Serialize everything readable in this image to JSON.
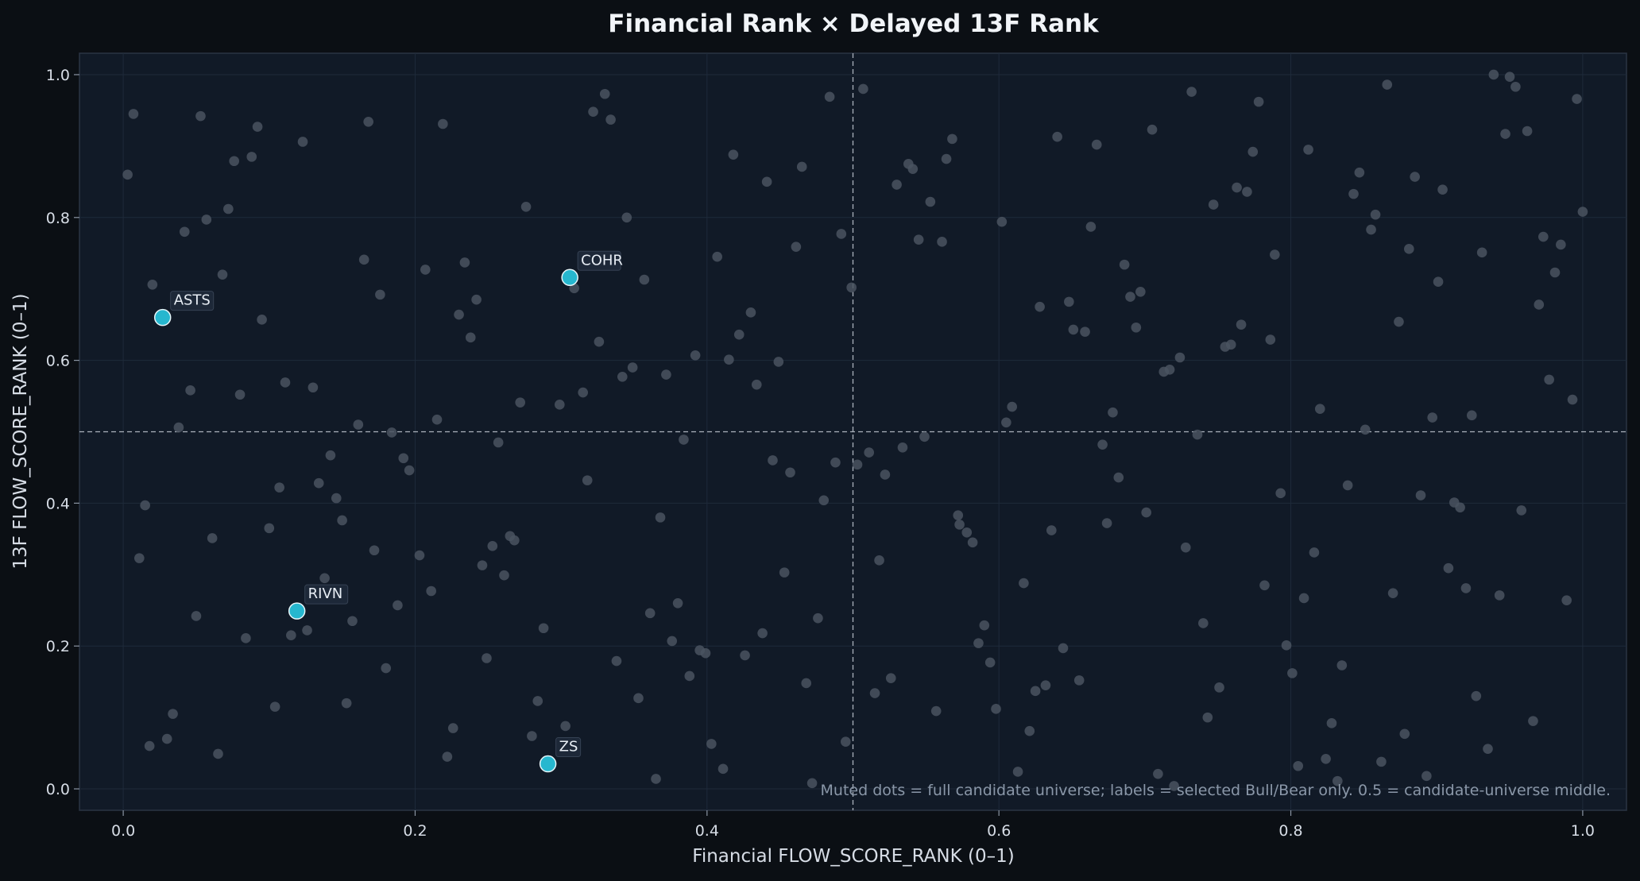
{
  "chart_data": {
    "type": "scatter",
    "title": "Financial Rank × Delayed 13F Rank",
    "xlabel": "Financial FLOW_SCORE_RANK (0–1)",
    "ylabel": "13F FLOW_SCORE_RANK (0–1)",
    "xlim": [
      -0.03,
      1.03
    ],
    "ylim": [
      -0.03,
      1.03
    ],
    "xticks": [
      "0.0",
      "0.2",
      "0.4",
      "0.6",
      "0.8",
      "1.0"
    ],
    "yticks": [
      "0.0",
      "0.2",
      "0.4",
      "0.6",
      "0.8",
      "1.0"
    ],
    "reference_lines": {
      "x": 0.5,
      "y": 0.5
    },
    "grid": true,
    "annotation": "Muted dots = full candidate universe; labels = selected Bull/Bear only. 0.5 = candidate-universe middle.",
    "colors": {
      "background": "#0b0f14",
      "plot": "#111a27",
      "muted": "#4a5360",
      "highlight": "#26b7cf"
    },
    "universe": [
      [
        0.003,
        0.86
      ],
      [
        0.007,
        0.945
      ],
      [
        0.02,
        0.706
      ],
      [
        0.011,
        0.323
      ],
      [
        0.015,
        0.397
      ],
      [
        0.018,
        0.06
      ],
      [
        0.03,
        0.07
      ],
      [
        0.034,
        0.105
      ],
      [
        0.038,
        0.506
      ],
      [
        0.042,
        0.78
      ],
      [
        0.046,
        0.558
      ],
      [
        0.05,
        0.242
      ],
      [
        0.053,
        0.942
      ],
      [
        0.057,
        0.797
      ],
      [
        0.061,
        0.351
      ],
      [
        0.065,
        0.049
      ],
      [
        0.068,
        0.72
      ],
      [
        0.072,
        0.812
      ],
      [
        0.076,
        0.879
      ],
      [
        0.08,
        0.552
      ],
      [
        0.084,
        0.211
      ],
      [
        0.088,
        0.885
      ],
      [
        0.092,
        0.927
      ],
      [
        0.095,
        0.657
      ],
      [
        0.1,
        0.365
      ],
      [
        0.104,
        0.115
      ],
      [
        0.107,
        0.422
      ],
      [
        0.111,
        0.569
      ],
      [
        0.115,
        0.215
      ],
      [
        0.123,
        0.906
      ],
      [
        0.126,
        0.222
      ],
      [
        0.13,
        0.562
      ],
      [
        0.134,
        0.428
      ],
      [
        0.138,
        0.295
      ],
      [
        0.142,
        0.467
      ],
      [
        0.146,
        0.407
      ],
      [
        0.15,
        0.376
      ],
      [
        0.153,
        0.12
      ],
      [
        0.157,
        0.235
      ],
      [
        0.161,
        0.51
      ],
      [
        0.165,
        0.741
      ],
      [
        0.168,
        0.934
      ],
      [
        0.172,
        0.334
      ],
      [
        0.176,
        0.692
      ],
      [
        0.18,
        0.169
      ],
      [
        0.184,
        0.499
      ],
      [
        0.188,
        0.257
      ],
      [
        0.192,
        0.463
      ],
      [
        0.196,
        0.446
      ],
      [
        0.203,
        0.327
      ],
      [
        0.207,
        0.727
      ],
      [
        0.211,
        0.277
      ],
      [
        0.215,
        0.517
      ],
      [
        0.219,
        0.931
      ],
      [
        0.222,
        0.045
      ],
      [
        0.226,
        0.085
      ],
      [
        0.23,
        0.664
      ],
      [
        0.234,
        0.737
      ],
      [
        0.238,
        0.632
      ],
      [
        0.242,
        0.685
      ],
      [
        0.246,
        0.313
      ],
      [
        0.249,
        0.183
      ],
      [
        0.253,
        0.34
      ],
      [
        0.257,
        0.485
      ],
      [
        0.261,
        0.299
      ],
      [
        0.265,
        0.354
      ],
      [
        0.268,
        0.348
      ],
      [
        0.272,
        0.541
      ],
      [
        0.276,
        0.815
      ],
      [
        0.28,
        0.074
      ],
      [
        0.284,
        0.123
      ],
      [
        0.288,
        0.225
      ],
      [
        0.299,
        0.538
      ],
      [
        0.303,
        0.088
      ],
      [
        0.315,
        0.555
      ],
      [
        0.318,
        0.432
      ],
      [
        0.322,
        0.948
      ],
      [
        0.326,
        0.626
      ],
      [
        0.33,
        0.973
      ],
      [
        0.334,
        0.937
      ],
      [
        0.338,
        0.179
      ],
      [
        0.342,
        0.577
      ],
      [
        0.345,
        0.8
      ],
      [
        0.349,
        0.59
      ],
      [
        0.353,
        0.127
      ],
      [
        0.357,
        0.713
      ],
      [
        0.361,
        0.246
      ],
      [
        0.365,
        0.014
      ],
      [
        0.368,
        0.38
      ],
      [
        0.372,
        0.58
      ],
      [
        0.376,
        0.207
      ],
      [
        0.38,
        0.26
      ],
      [
        0.384,
        0.489
      ],
      [
        0.388,
        0.158
      ],
      [
        0.392,
        0.607
      ],
      [
        0.395,
        0.194
      ],
      [
        0.399,
        0.19
      ],
      [
        0.403,
        0.063
      ],
      [
        0.407,
        0.745
      ],
      [
        0.411,
        0.028
      ],
      [
        0.415,
        0.601
      ],
      [
        0.418,
        0.888
      ],
      [
        0.422,
        0.636
      ],
      [
        0.426,
        0.187
      ],
      [
        0.43,
        0.667
      ],
      [
        0.434,
        0.566
      ],
      [
        0.438,
        0.218
      ],
      [
        0.441,
        0.85
      ],
      [
        0.445,
        0.46
      ],
      [
        0.449,
        0.598
      ],
      [
        0.453,
        0.303
      ],
      [
        0.457,
        0.443
      ],
      [
        0.461,
        0.759
      ],
      [
        0.465,
        0.871
      ],
      [
        0.468,
        0.148
      ],
      [
        0.472,
        0.008
      ],
      [
        0.476,
        0.239
      ],
      [
        0.48,
        0.404
      ],
      [
        0.484,
        0.969
      ],
      [
        0.488,
        0.457
      ],
      [
        0.492,
        0.777
      ],
      [
        0.495,
        0.066
      ],
      [
        0.499,
        0.702
      ],
      [
        0.503,
        0.454
      ],
      [
        0.507,
        0.98
      ],
      [
        0.511,
        0.471
      ],
      [
        0.515,
        0.134
      ],
      [
        0.518,
        0.32
      ],
      [
        0.522,
        0.44
      ],
      [
        0.526,
        0.155
      ],
      [
        0.53,
        0.846
      ],
      [
        0.534,
        0.478
      ],
      [
        0.538,
        0.875
      ],
      [
        0.541,
        0.868
      ],
      [
        0.545,
        0.769
      ],
      [
        0.549,
        0.493
      ],
      [
        0.553,
        0.822
      ],
      [
        0.557,
        0.109
      ],
      [
        0.561,
        0.766
      ],
      [
        0.564,
        0.882
      ],
      [
        0.568,
        0.91
      ],
      [
        0.572,
        0.383
      ],
      [
        0.573,
        0.37
      ],
      [
        0.578,
        0.359
      ],
      [
        0.582,
        0.345
      ],
      [
        0.586,
        0.204
      ],
      [
        0.59,
        0.229
      ],
      [
        0.594,
        0.177
      ],
      [
        0.598,
        0.112
      ],
      [
        0.602,
        0.794
      ],
      [
        0.605,
        0.513
      ],
      [
        0.609,
        0.535
      ],
      [
        0.613,
        0.024
      ],
      [
        0.617,
        0.288
      ],
      [
        0.621,
        0.081
      ],
      [
        0.625,
        0.137
      ],
      [
        0.628,
        0.675
      ],
      [
        0.632,
        0.145
      ],
      [
        0.636,
        0.362
      ],
      [
        0.64,
        0.913
      ],
      [
        0.644,
        0.197
      ],
      [
        0.648,
        0.682
      ],
      [
        0.651,
        0.643
      ],
      [
        0.655,
        0.152
      ],
      [
        0.659,
        0.64
      ],
      [
        0.663,
        0.787
      ],
      [
        0.667,
        0.902
      ],
      [
        0.671,
        0.482
      ],
      [
        0.674,
        0.372
      ],
      [
        0.678,
        0.527
      ],
      [
        0.682,
        0.436
      ],
      [
        0.686,
        0.734
      ],
      [
        0.69,
        0.689
      ],
      [
        0.694,
        0.646
      ],
      [
        0.697,
        0.696
      ],
      [
        0.701,
        0.387
      ],
      [
        0.705,
        0.923
      ],
      [
        0.709,
        0.021
      ],
      [
        0.713,
        0.584
      ],
      [
        0.717,
        0.587
      ],
      [
        0.72,
        0.004
      ],
      [
        0.724,
        0.604
      ],
      [
        0.728,
        0.338
      ],
      [
        0.732,
        0.976
      ],
      [
        0.736,
        0.496
      ],
      [
        0.74,
        0.232
      ],
      [
        0.743,
        0.1
      ],
      [
        0.747,
        0.818
      ],
      [
        0.751,
        0.142
      ],
      [
        0.755,
        0.619
      ],
      [
        0.759,
        0.622
      ],
      [
        0.763,
        0.842
      ],
      [
        0.766,
        0.65
      ],
      [
        0.77,
        0.836
      ],
      [
        0.774,
        0.892
      ],
      [
        0.778,
        0.962
      ],
      [
        0.782,
        0.285
      ],
      [
        0.786,
        0.629
      ],
      [
        0.789,
        0.748
      ],
      [
        0.793,
        0.414
      ],
      [
        0.797,
        0.201
      ],
      [
        0.801,
        0.162
      ],
      [
        0.805,
        0.032
      ],
      [
        0.809,
        0.267
      ],
      [
        0.812,
        0.895
      ],
      [
        0.816,
        0.331
      ],
      [
        0.82,
        0.532
      ],
      [
        0.824,
        0.042
      ],
      [
        0.828,
        0.092
      ],
      [
        0.832,
        0.011
      ],
      [
        0.835,
        0.173
      ],
      [
        0.839,
        0.425
      ],
      [
        0.843,
        0.833
      ],
      [
        0.847,
        0.863
      ],
      [
        0.851,
        0.503
      ],
      [
        0.855,
        0.783
      ],
      [
        0.858,
        0.804
      ],
      [
        0.862,
        0.038
      ],
      [
        0.866,
        0.986
      ],
      [
        0.87,
        0.274
      ],
      [
        0.874,
        0.654
      ],
      [
        0.878,
        0.077
      ],
      [
        0.881,
        0.756
      ],
      [
        0.885,
        0.857
      ],
      [
        0.889,
        0.411
      ],
      [
        0.893,
        0.018
      ],
      [
        0.897,
        0.52
      ],
      [
        0.901,
        0.71
      ],
      [
        0.904,
        0.839
      ],
      [
        0.908,
        0.309
      ],
      [
        0.912,
        0.401
      ],
      [
        0.916,
        0.394
      ],
      [
        0.92,
        0.281
      ],
      [
        0.924,
        0.523
      ],
      [
        0.927,
        0.13
      ],
      [
        0.931,
        0.751
      ],
      [
        0.935,
        0.056
      ],
      [
        0.939,
        1.0
      ],
      [
        0.943,
        0.271
      ],
      [
        0.947,
        0.917
      ],
      [
        0.95,
        0.997
      ],
      [
        0.954,
        0.983
      ],
      [
        0.958,
        0.39
      ],
      [
        0.962,
        0.921
      ],
      [
        0.966,
        0.095
      ],
      [
        0.97,
        0.678
      ],
      [
        0.973,
        0.773
      ],
      [
        0.977,
        0.573
      ],
      [
        0.981,
        0.723
      ],
      [
        0.985,
        0.762
      ],
      [
        0.989,
        0.264
      ],
      [
        0.993,
        0.545
      ],
      [
        0.996,
        0.966
      ],
      [
        1.0,
        0.808
      ],
      [
        0.309,
        0.701
      ]
    ],
    "series": [
      {
        "label": "ASTS",
        "x": 0.027,
        "y": 0.66
      },
      {
        "label": "COHR",
        "x": 0.306,
        "y": 0.716
      },
      {
        "label": "RIVN",
        "x": 0.119,
        "y": 0.249
      },
      {
        "label": "ZS",
        "x": 0.291,
        "y": 0.035
      }
    ]
  }
}
